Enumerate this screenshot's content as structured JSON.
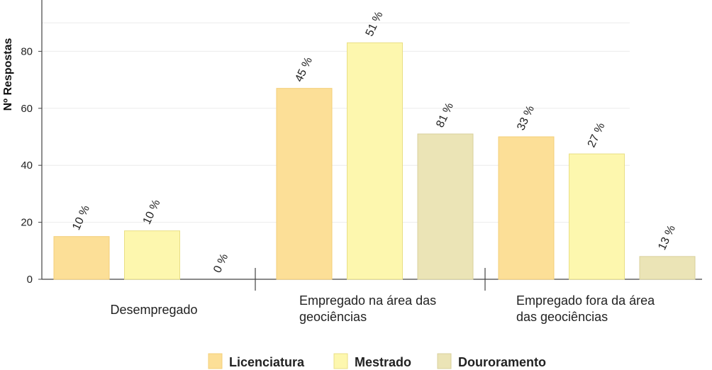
{
  "chart_data": {
    "type": "bar",
    "title": "",
    "xlabel": "",
    "ylabel": "Nº Respostas",
    "ylim": [
      0,
      95
    ],
    "yticks": [
      0,
      20,
      40,
      60,
      80
    ],
    "grid": true,
    "legend_position": "bottom-center",
    "categories": [
      [
        "Desempregado"
      ],
      [
        "Empregado na área das",
        "geociências"
      ],
      [
        "Empregado fora da área",
        "das geociências"
      ]
    ],
    "series": [
      {
        "name": "Licenciatura",
        "color": "#fcdf97",
        "edge": "#f3cf7a",
        "values": [
          15,
          67,
          50
        ],
        "labels": [
          "10 %",
          "45 %",
          "33 %"
        ]
      },
      {
        "name": "Mestrado",
        "color": "#fdf7ae",
        "edge": "#e9df86",
        "values": [
          17,
          83,
          44
        ],
        "labels": [
          "10 %",
          "51 %",
          "27 %"
        ]
      },
      {
        "name": "Douroramento",
        "color": "#ebe4b6",
        "edge": "#d8d09c",
        "values": [
          0,
          51,
          8
        ],
        "labels": [
          "0 %",
          "81 %",
          "13 %"
        ]
      }
    ]
  }
}
